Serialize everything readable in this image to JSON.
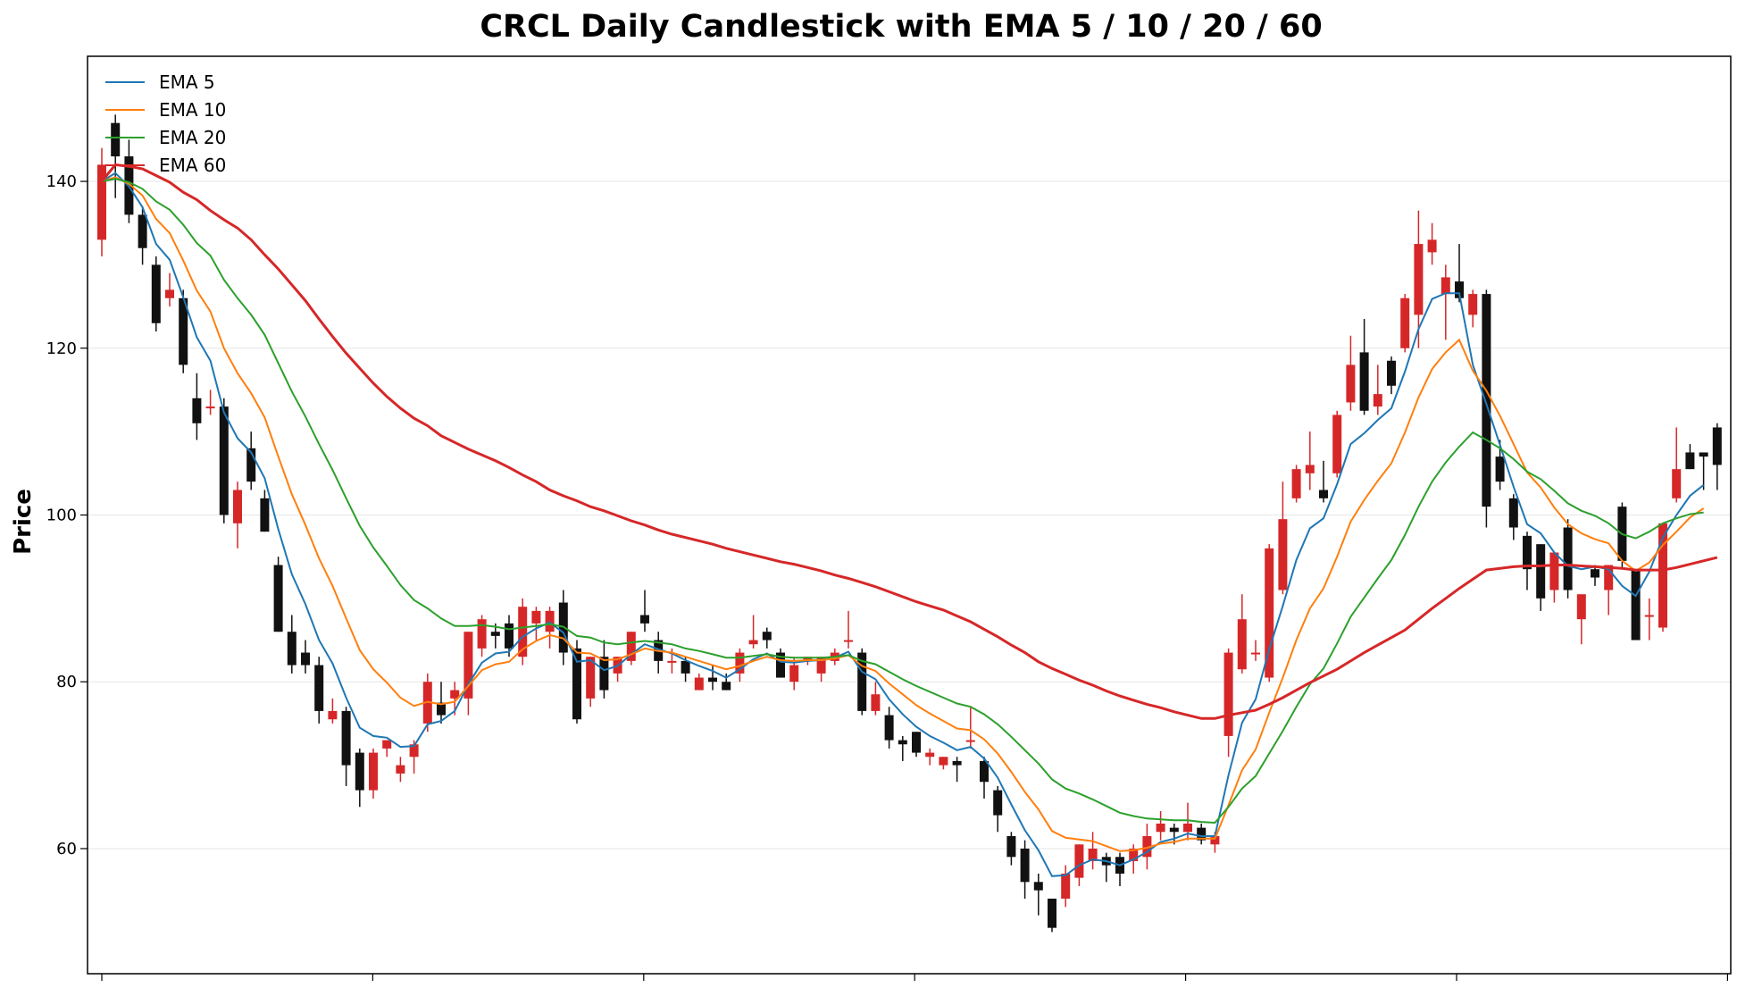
{
  "chart_data": {
    "type": "candlestick",
    "title": "CRCL Daily Candlestick with EMA 5 / 10 / 20 / 60",
    "xlabel": "",
    "ylabel": "Price",
    "ylim": [
      45,
      155
    ],
    "y_ticks": [
      60,
      80,
      100,
      120,
      140
    ],
    "grid": "horizontal",
    "legend_position": "top-left",
    "colors": {
      "up": "#d62728",
      "down": "#111111"
    },
    "candles": [
      [
        133.0,
        144.0,
        131.0,
        142.0
      ],
      [
        147.0,
        148.0,
        138.0,
        143.0
      ],
      [
        143.0,
        145.0,
        135.0,
        136.0
      ],
      [
        136.0,
        137.0,
        130.0,
        132.0
      ],
      [
        130.0,
        131.0,
        122.0,
        123.0
      ],
      [
        126.0,
        129.0,
        125.0,
        127.0
      ],
      [
        126.0,
        127.0,
        117.0,
        118.0
      ],
      [
        114.0,
        117.0,
        109.0,
        111.0
      ],
      [
        113.0,
        115.0,
        112.0,
        113.0
      ],
      [
        113.0,
        114.0,
        99.0,
        100.0
      ],
      [
        99.0,
        104.0,
        96.0,
        103.0
      ],
      [
        108.0,
        110.0,
        103.0,
        104.0
      ],
      [
        102.0,
        103.0,
        98.0,
        98.0
      ],
      [
        94.0,
        95.0,
        86.0,
        86.0
      ],
      [
        86.0,
        88.0,
        81.0,
        82.0
      ],
      [
        83.5,
        85.0,
        81.0,
        82.0
      ],
      [
        82.0,
        83.0,
        75.0,
        76.5
      ],
      [
        75.5,
        78.0,
        75.0,
        76.5
      ],
      [
        76.5,
        77.0,
        67.5,
        70.0
      ],
      [
        71.5,
        72.0,
        65.0,
        67.0
      ],
      [
        67.0,
        72.0,
        66.0,
        71.5
      ],
      [
        72.0,
        73.0,
        71.0,
        73.0
      ],
      [
        69.0,
        71.0,
        68.0,
        70.0
      ],
      [
        71.0,
        73.0,
        69.0,
        72.5
      ],
      [
        75.0,
        81.0,
        74.0,
        80.0
      ],
      [
        77.5,
        80.0,
        75.0,
        76.0
      ],
      [
        78.0,
        80.0,
        76.0,
        79.0
      ],
      [
        78.0,
        86.0,
        76.0,
        86.0
      ],
      [
        84.0,
        88.0,
        83.0,
        87.5
      ],
      [
        86.0,
        87.0,
        84.0,
        85.5
      ],
      [
        87.0,
        88.0,
        83.0,
        84.0
      ],
      [
        83.0,
        90.0,
        82.0,
        89.0
      ],
      [
        87.0,
        89.0,
        85.0,
        88.5
      ],
      [
        86.0,
        89.0,
        84.0,
        88.5
      ],
      [
        89.5,
        91.0,
        82.0,
        83.5
      ],
      [
        84.0,
        85.0,
        75.0,
        75.5
      ],
      [
        78.0,
        83.0,
        77.0,
        83.0
      ],
      [
        83.0,
        85.0,
        78.0,
        79.0
      ],
      [
        81.0,
        83.0,
        80.0,
        83.0
      ],
      [
        82.5,
        86.0,
        82.0,
        86.0
      ],
      [
        88.0,
        91.0,
        86.0,
        87.0
      ],
      [
        85.0,
        86.0,
        81.0,
        82.5
      ],
      [
        82.5,
        84.0,
        81.0,
        82.5
      ],
      [
        82.5,
        83.0,
        80.0,
        81.0
      ],
      [
        79.0,
        81.0,
        79.0,
        80.5
      ],
      [
        80.5,
        82.0,
        79.0,
        80.0
      ],
      [
        80.0,
        81.0,
        79.0,
        79.0
      ],
      [
        81.0,
        84.0,
        80.0,
        83.5
      ],
      [
        84.5,
        88.0,
        84.0,
        85.0
      ],
      [
        86.0,
        86.5,
        84.0,
        85.0
      ],
      [
        83.5,
        84.0,
        80.5,
        80.5
      ],
      [
        80.0,
        83.0,
        79.0,
        82.0
      ],
      [
        82.5,
        83.0,
        82.0,
        83.0
      ],
      [
        81.0,
        83.0,
        80.0,
        83.0
      ],
      [
        82.5,
        84.0,
        82.0,
        83.5
      ],
      [
        85.0,
        88.5,
        84.0,
        85.0
      ],
      [
        83.5,
        84.0,
        76.0,
        76.5
      ],
      [
        76.5,
        80.0,
        76.0,
        78.5
      ],
      [
        76.0,
        77.0,
        72.0,
        73.0
      ],
      [
        73.0,
        73.5,
        70.5,
        72.5
      ],
      [
        74.0,
        74.0,
        71.0,
        71.5
      ],
      [
        71.0,
        72.0,
        70.0,
        71.5
      ],
      [
        70.0,
        71.0,
        69.5,
        71.0
      ],
      [
        70.5,
        71.0,
        68.0,
        70.0
      ],
      [
        73.0,
        77.0,
        72.0,
        73.0
      ],
      [
        70.5,
        71.0,
        66.0,
        68.0
      ],
      [
        67.0,
        67.5,
        62.0,
        64.0
      ],
      [
        61.5,
        62.0,
        58.0,
        59.0
      ],
      [
        60.0,
        61.0,
        54.0,
        56.0
      ],
      [
        56.0,
        57.0,
        52.0,
        55.0
      ],
      [
        54.0,
        54.0,
        50.0,
        50.5
      ],
      [
        54.0,
        58.0,
        53.0,
        57.0
      ],
      [
        56.5,
        60.5,
        55.5,
        60.5
      ],
      [
        58.5,
        62.0,
        57.5,
        60.0
      ],
      [
        59.0,
        59.5,
        56.0,
        58.0
      ],
      [
        59.0,
        59.5,
        55.5,
        57.0
      ],
      [
        58.5,
        60.5,
        57.0,
        60.0
      ],
      [
        59.0,
        63.0,
        57.5,
        61.5
      ],
      [
        62.0,
        64.5,
        61.0,
        63.0
      ],
      [
        62.5,
        63.0,
        60.5,
        62.0
      ],
      [
        62.0,
        65.5,
        61.0,
        63.0
      ],
      [
        62.5,
        63.0,
        60.5,
        61.0
      ],
      [
        60.5,
        62.0,
        59.5,
        61.5
      ],
      [
        73.5,
        84.0,
        71.0,
        83.5
      ],
      [
        81.5,
        90.5,
        81.0,
        87.5
      ],
      [
        83.5,
        85.0,
        82.5,
        83.5
      ],
      [
        80.5,
        96.5,
        80.0,
        96.0
      ],
      [
        91.0,
        104.0,
        90.5,
        99.5
      ],
      [
        102.0,
        106.0,
        101.5,
        105.5
      ],
      [
        105.0,
        110.0,
        103.0,
        106.0
      ],
      [
        103.0,
        106.5,
        101.5,
        102.0
      ],
      [
        105.0,
        112.5,
        104.5,
        112.0
      ],
      [
        113.5,
        121.5,
        112.5,
        118.0
      ],
      [
        119.5,
        123.5,
        112.0,
        112.5
      ],
      [
        113.0,
        118.0,
        112.0,
        114.5
      ],
      [
        118.5,
        119.0,
        114.5,
        115.5
      ],
      [
        120.0,
        126.5,
        119.5,
        126.0
      ],
      [
        124.0,
        136.5,
        120.0,
        132.5
      ],
      [
        131.5,
        135.0,
        130.0,
        133.0
      ],
      [
        126.5,
        130.0,
        121.0,
        128.5
      ],
      [
        128.0,
        132.5,
        125.5,
        126.0
      ],
      [
        124.0,
        127.0,
        122.5,
        126.5
      ],
      [
        126.5,
        127.0,
        98.5,
        101.0
      ],
      [
        107.0,
        109.0,
        103.0,
        104.0
      ],
      [
        102.0,
        102.5,
        97.0,
        98.5
      ],
      [
        97.5,
        98.0,
        91.0,
        93.5
      ],
      [
        96.5,
        96.5,
        88.5,
        90.0
      ],
      [
        91.0,
        95.5,
        89.5,
        95.5
      ],
      [
        98.5,
        99.5,
        90.0,
        91.0
      ],
      [
        87.5,
        90.0,
        84.5,
        90.5
      ],
      [
        93.5,
        94.0,
        91.5,
        92.5
      ],
      [
        91.0,
        94.0,
        88.0,
        94.0
      ],
      [
        101.0,
        101.5,
        93.5,
        94.5
      ],
      [
        93.5,
        93.5,
        85.5,
        85.0
      ],
      [
        88.0,
        90.0,
        85.0,
        88.0
      ],
      [
        86.5,
        99.0,
        86.0,
        99.0
      ],
      [
        102.0,
        110.5,
        101.5,
        105.5
      ],
      [
        107.5,
        108.5,
        105.5,
        105.5
      ],
      [
        107.5,
        107.5,
        103.0,
        107.0
      ],
      [
        110.5,
        111.0,
        103.0,
        106.0
      ]
    ],
    "series": [
      {
        "name": "EMA 5",
        "color": "#1f77b4",
        "values": [
          140.0,
          141.0,
          139.4,
          136.9,
          132.5,
          130.6,
          126.1,
          121.3,
          118.5,
          112.3,
          109.2,
          107.5,
          104.4,
          98.3,
          92.9,
          89.3,
          85.0,
          82.2,
          78.1,
          74.5,
          73.5,
          73.3,
          72.2,
          72.3,
          74.9,
          75.3,
          76.5,
          79.7,
          82.3,
          83.4,
          83.6,
          85.4,
          86.4,
          87.1,
          85.9,
          82.4,
          82.6,
          81.4,
          81.9,
          83.3,
          84.5,
          83.9,
          83.4,
          82.6,
          81.9,
          81.3,
          80.5,
          81.5,
          82.7,
          83.4,
          82.4,
          82.3,
          82.5,
          82.6,
          82.9,
          83.6,
          81.2,
          80.3,
          77.9,
          76.1,
          74.6,
          73.5,
          72.7,
          71.8,
          72.2,
          70.8,
          68.5,
          65.3,
          62.2,
          59.8,
          56.7,
          56.8,
          58.0,
          58.7,
          58.5,
          58.0,
          58.7,
          59.6,
          60.8,
          61.2,
          61.8,
          61.5,
          61.5,
          68.8,
          75.1,
          77.9,
          83.9,
          89.1,
          94.6,
          98.4,
          99.6,
          103.7,
          108.5,
          109.8,
          111.4,
          112.8,
          117.2,
          122.3,
          125.9,
          126.6,
          126.6,
          118.0,
          113.3,
          108.4,
          103.4,
          98.9,
          97.8,
          95.5,
          93.9,
          93.5,
          93.8,
          93.5,
          91.5,
          90.3,
          93.2,
          97.3,
          100.0,
          102.3,
          103.6
        ]
      },
      {
        "name": "EMA 10",
        "color": "#ff7f0e",
        "values": [
          140.0,
          140.5,
          139.7,
          138.3,
          135.5,
          133.8,
          130.5,
          126.9,
          124.4,
          120.0,
          117.0,
          114.6,
          111.7,
          107.0,
          102.5,
          98.8,
          94.8,
          91.5,
          87.6,
          83.8,
          81.5,
          79.9,
          78.1,
          77.1,
          77.6,
          77.3,
          77.6,
          79.5,
          81.4,
          82.1,
          82.4,
          83.9,
          84.9,
          85.6,
          85.2,
          83.5,
          83.4,
          82.6,
          82.7,
          83.3,
          84.0,
          83.7,
          83.5,
          83.0,
          82.5,
          82.0,
          81.5,
          81.9,
          82.5,
          83.0,
          82.6,
          82.5,
          82.6,
          82.6,
          82.8,
          83.2,
          81.9,
          81.3,
          79.8,
          78.5,
          77.2,
          76.2,
          75.3,
          74.4,
          74.2,
          73.1,
          71.4,
          69.2,
          66.8,
          64.7,
          62.1,
          61.3,
          61.1,
          60.9,
          60.3,
          59.7,
          59.8,
          60.1,
          60.6,
          60.8,
          61.2,
          61.2,
          61.2,
          65.2,
          69.4,
          71.9,
          76.3,
          80.5,
          85.0,
          88.8,
          91.2,
          95.0,
          99.2,
          101.8,
          104.1,
          106.2,
          109.9,
          114.1,
          117.5,
          119.5,
          121.0,
          117.3,
          114.9,
          111.9,
          108.5,
          105.1,
          103.3,
          100.9,
          98.9,
          97.8,
          97.1,
          96.6,
          94.5,
          93.3,
          94.3,
          96.4,
          98.0,
          99.7,
          100.8
        ]
      },
      {
        "name": "EMA 20",
        "color": "#2ca02c",
        "values": [
          140.0,
          140.3,
          139.9,
          139.1,
          137.6,
          136.6,
          134.8,
          132.6,
          131.1,
          128.2,
          126.0,
          124.0,
          121.6,
          118.2,
          114.8,
          111.8,
          108.5,
          105.4,
          102.0,
          98.7,
          96.1,
          93.9,
          91.6,
          89.8,
          88.8,
          87.6,
          86.7,
          86.7,
          86.8,
          86.6,
          86.3,
          86.5,
          86.7,
          86.9,
          86.6,
          85.5,
          85.3,
          84.7,
          84.5,
          84.7,
          84.9,
          84.7,
          84.5,
          84.0,
          83.7,
          83.3,
          82.9,
          82.9,
          83.1,
          83.3,
          83.0,
          82.9,
          82.9,
          82.9,
          83.0,
          83.2,
          82.5,
          82.1,
          81.2,
          80.3,
          79.5,
          78.8,
          78.1,
          77.4,
          77.0,
          76.1,
          74.9,
          73.4,
          71.8,
          70.2,
          68.3,
          67.2,
          66.6,
          65.9,
          65.1,
          64.3,
          63.9,
          63.6,
          63.5,
          63.4,
          63.4,
          63.2,
          63.1,
          65.0,
          67.2,
          68.7,
          71.4,
          74.1,
          77.0,
          79.7,
          81.6,
          84.6,
          87.8,
          90.1,
          92.4,
          94.6,
          97.6,
          101.0,
          104.0,
          106.3,
          108.2,
          109.9,
          109.0,
          108.0,
          106.7,
          105.2,
          104.3,
          102.9,
          101.4,
          100.5,
          99.9,
          99.0,
          97.7,
          97.2,
          98.0,
          99.0,
          99.6,
          100.1,
          100.3
        ]
      },
      {
        "name": "EMA 60",
        "color": "#d62728",
        "values": [
          140.0,
          142.0,
          141.8,
          141.5,
          140.7,
          139.9,
          138.7,
          137.8,
          136.5,
          135.4,
          134.4,
          133.0,
          131.2,
          129.5,
          127.6,
          125.7,
          123.5,
          121.4,
          119.4,
          117.6,
          115.8,
          114.2,
          112.8,
          111.6,
          110.7,
          109.5,
          108.7,
          107.9,
          107.2,
          106.5,
          105.7,
          104.8,
          104.0,
          103.0,
          102.3,
          101.7,
          101.0,
          100.5,
          99.9,
          99.3,
          98.8,
          98.2,
          97.7,
          97.3,
          96.9,
          96.5,
          96.0,
          95.6,
          95.2,
          94.8,
          94.4,
          94.1,
          93.7,
          93.3,
          92.8,
          92.4,
          91.9,
          91.4,
          90.8,
          90.2,
          89.6,
          89.1,
          88.6,
          87.9,
          87.2,
          86.3,
          85.4,
          84.4,
          83.5,
          82.4,
          81.6,
          80.9,
          80.2,
          79.6,
          78.9,
          78.3,
          77.8,
          77.3,
          76.9,
          76.4,
          76.0,
          75.6,
          75.6,
          76.0,
          76.3,
          76.6,
          77.3,
          78.1,
          79.0,
          79.9,
          80.7,
          81.5,
          82.5,
          83.5,
          84.4,
          85.3,
          86.2,
          87.5,
          88.8,
          90.0,
          91.2,
          92.3,
          93.4,
          93.6,
          93.8,
          93.9,
          93.9,
          94.0,
          94.0,
          93.9,
          93.8,
          93.7,
          93.6,
          93.4,
          93.4,
          93.4,
          93.7,
          94.1,
          94.5,
          94.9
        ]
      }
    ]
  }
}
